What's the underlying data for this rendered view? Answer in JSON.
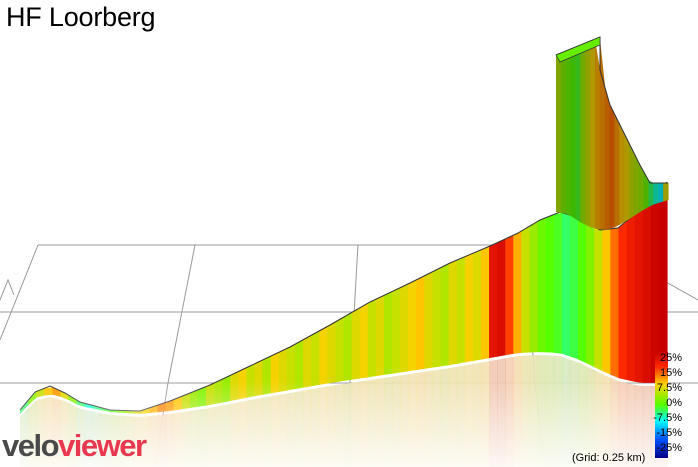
{
  "title": "HF Loorberg",
  "logo": {
    "part1": "velo",
    "part2": "viewer"
  },
  "grid_note": "(Grid: 0.25 km)",
  "chart_data": {
    "type": "area",
    "title": "HF Loorberg",
    "grid_km": 0.25,
    "legend": {
      "placement": "bottom-right",
      "ticks": [
        "25%",
        "15%",
        "7.5%",
        "0%",
        "-7.5%",
        "-15%",
        "-25%"
      ],
      "colors": [
        "#d40000",
        "#ff4000",
        "#ffcc00",
        "#66ff00",
        "#00ffff",
        "#0044ff",
        "#000080"
      ]
    },
    "profile": {
      "gradient_pct": [
        -3,
        2,
        5,
        8,
        10,
        6,
        2,
        -3,
        -6,
        -4,
        -2,
        0,
        2,
        4,
        6,
        7,
        9,
        11,
        10,
        8,
        5,
        3,
        2,
        5,
        4,
        3,
        6,
        7,
        5,
        6,
        4,
        7,
        6,
        5,
        4,
        6,
        5,
        7,
        6,
        5,
        4,
        6,
        7,
        5,
        6,
        4,
        5,
        6,
        7,
        8,
        6,
        5,
        4,
        6,
        5,
        7,
        6,
        8,
        20,
        22,
        14,
        9,
        5,
        3,
        1,
        0,
        -1,
        -3,
        -2,
        0,
        2,
        5,
        8,
        12,
        15,
        18,
        20,
        22,
        24,
        25
      ]
    },
    "wall": {
      "gradient_pct": [
        4,
        2,
        1,
        0,
        -1,
        3,
        5,
        7,
        9,
        10,
        11,
        12,
        10,
        8,
        7,
        5,
        4,
        3,
        1,
        -3,
        -6,
        -8,
        6
      ]
    }
  }
}
